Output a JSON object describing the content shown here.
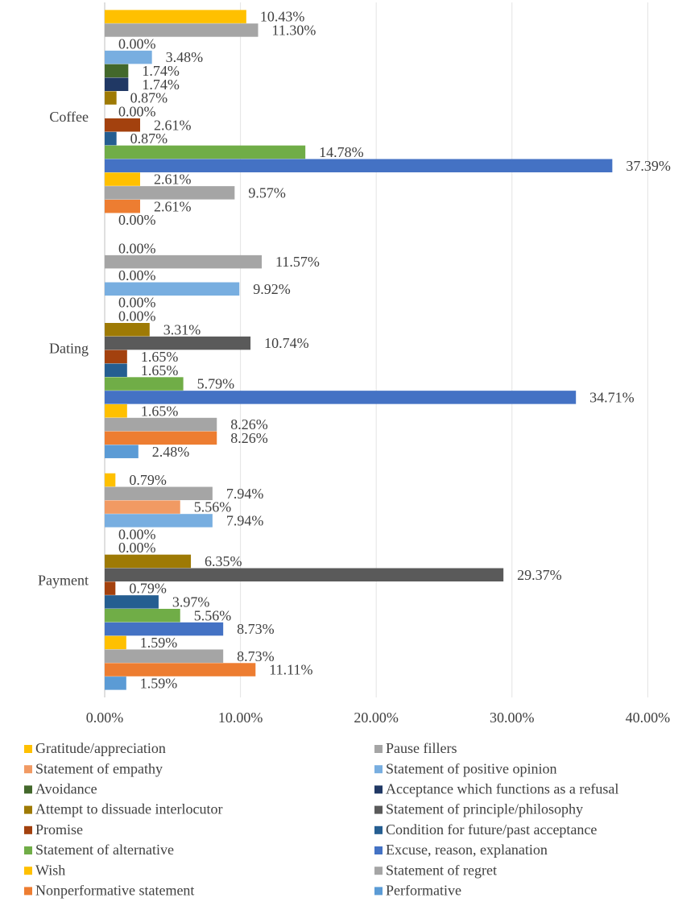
{
  "chart_data": {
    "type": "bar",
    "orientation": "horizontal",
    "categories": [
      "Coffee",
      "Dating",
      "Payment"
    ],
    "series": [
      {
        "name": "Gratitude/appreciation",
        "color": "#ffc000",
        "values": [
          10.43,
          0.0,
          0.79
        ],
        "value_labels": [
          "10.43%",
          "0.00%",
          "0.79%"
        ]
      },
      {
        "name": "Pause fillers",
        "color": "#a5a5a5",
        "values": [
          11.3,
          11.57,
          7.94
        ],
        "value_labels": [
          "11.30%",
          "11.57%",
          "7.94%"
        ]
      },
      {
        "name": "Statement of empathy",
        "color": "#f19a63",
        "values": [
          0.0,
          0.0,
          5.56
        ],
        "value_labels": [
          "0.00%",
          "0.00%",
          "5.56%"
        ]
      },
      {
        "name": "Statement of positive opinion",
        "color": "#78aee0",
        "values": [
          3.48,
          9.92,
          7.94
        ],
        "value_labels": [
          "3.48%",
          "9.92%",
          "7.94%"
        ]
      },
      {
        "name": "Avoidance",
        "color": "#43682b",
        "values": [
          1.74,
          0.0,
          0.0
        ],
        "value_labels": [
          "1.74%",
          "0.00%",
          "0.00%"
        ]
      },
      {
        "name": "Acceptance which functions as a refusal",
        "color": "#203864",
        "values": [
          1.74,
          0.0,
          0.0
        ],
        "value_labels": [
          "1.74%",
          "0.00%",
          "0.00%"
        ]
      },
      {
        "name": "Attempt to dissuade interlocutor",
        "color": "#9e7a05",
        "values": [
          0.87,
          3.31,
          6.35
        ],
        "value_labels": [
          "0.87%",
          "3.31%",
          "6.35%"
        ]
      },
      {
        "name": "Statement of principle/philosophy",
        "color": "#5a5a5a",
        "values": [
          0.0,
          10.74,
          29.37
        ],
        "value_labels": [
          "0.00%",
          "10.74%",
          "29.37%"
        ]
      },
      {
        "name": "Promise",
        "color": "#a3410e",
        "values": [
          2.61,
          1.65,
          0.79
        ],
        "value_labels": [
          "2.61%",
          "1.65%",
          "0.79%"
        ]
      },
      {
        "name": "Condition for future/past acceptance",
        "color": "#255e91",
        "values": [
          0.87,
          1.65,
          3.97
        ],
        "value_labels": [
          "0.87%",
          "1.65%",
          "3.97%"
        ]
      },
      {
        "name": "Statement of alternative",
        "color": "#70ad47",
        "values": [
          14.78,
          5.79,
          5.56
        ],
        "value_labels": [
          "14.78%",
          "5.79%",
          "5.56%"
        ]
      },
      {
        "name": "Excuse, reason, explanation",
        "color": "#4472c4",
        "values": [
          37.39,
          34.71,
          8.73
        ],
        "value_labels": [
          "37.39%",
          "34.71%",
          "8.73%"
        ]
      },
      {
        "name": "Wish",
        "color": "#ffc000",
        "values": [
          2.61,
          1.65,
          1.59
        ],
        "value_labels": [
          "2.61%",
          "1.65%",
          "1.59%"
        ]
      },
      {
        "name": "Statement of regret",
        "color": "#a5a5a5",
        "values": [
          9.57,
          8.26,
          8.73
        ],
        "value_labels": [
          "9.57%",
          "8.26%",
          "8.73%"
        ]
      },
      {
        "name": "Nonperformative statement",
        "color": "#ed7d31",
        "values": [
          2.61,
          8.26,
          11.11
        ],
        "value_labels": [
          "2.61%",
          "8.26%",
          "11.11%"
        ]
      },
      {
        "name": "Performative",
        "color": "#5b9bd5",
        "values": [
          0.0,
          2.48,
          1.59
        ],
        "value_labels": [
          "0.00%",
          "2.48%",
          "1.59%"
        ]
      }
    ],
    "xlim": [
      0,
      43.3
    ],
    "xticks": [
      {
        "value": 0,
        "label": "0.00%"
      },
      {
        "value": 10,
        "label": "10.00%"
      },
      {
        "value": 20,
        "label": "20.00%"
      },
      {
        "value": 30,
        "label": "30.00%"
      },
      {
        "value": 40,
        "label": "40.00%"
      }
    ],
    "grid": true,
    "legend": "bottom"
  }
}
